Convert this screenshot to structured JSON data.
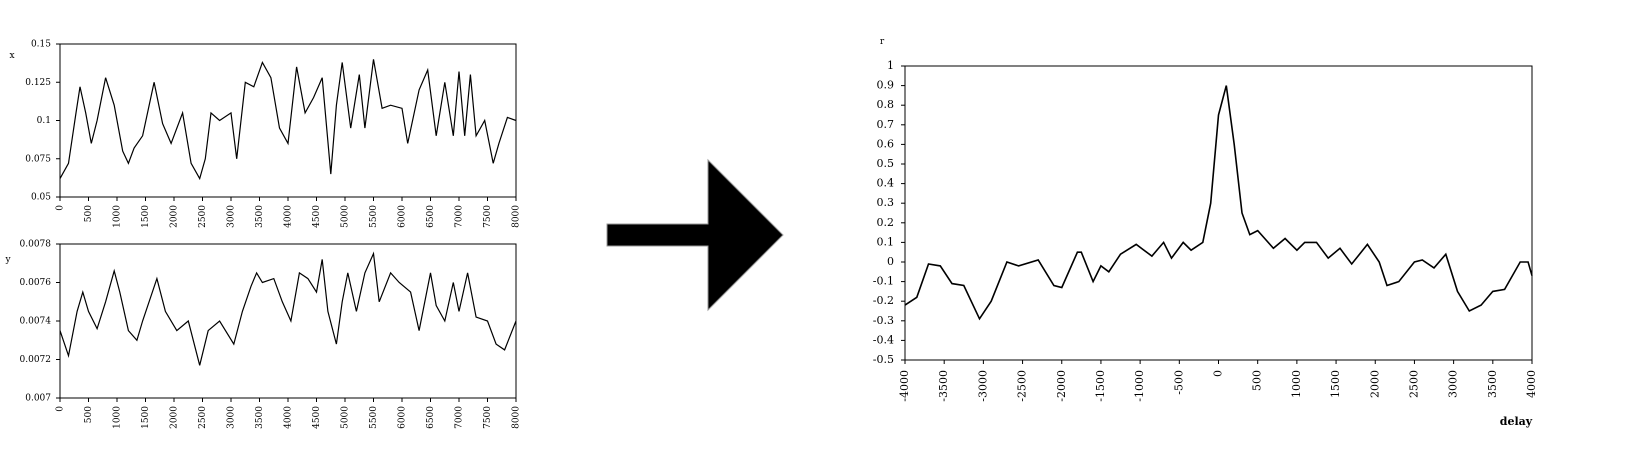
{
  "chart_data": [
    {
      "id": "x-series",
      "type": "line",
      "ylabel": "x",
      "xlabel": "",
      "xlim": [
        0,
        8000
      ],
      "ylim": [
        0.05,
        0.15
      ],
      "xticks": [
        0,
        500,
        1000,
        1500,
        2000,
        2500,
        3000,
        3500,
        4000,
        4500,
        5000,
        5500,
        6000,
        6500,
        7000,
        7500,
        8000
      ],
      "yticks": [
        0.05,
        0.075,
        0.1,
        0.125,
        0.15
      ],
      "ytick_labels": [
        "0.05",
        "0.075",
        "0.1",
        "0.125",
        "0.15"
      ],
      "series": [
        {
          "values": [
            [
              0,
              0.062
            ],
            [
              150,
              0.072
            ],
            [
              280,
              0.105
            ],
            [
              350,
              0.122
            ],
            [
              450,
              0.105
            ],
            [
              550,
              0.085
            ],
            [
              650,
              0.1
            ],
            [
              800,
              0.128
            ],
            [
              950,
              0.11
            ],
            [
              1100,
              0.08
            ],
            [
              1200,
              0.072
            ],
            [
              1300,
              0.082
            ],
            [
              1450,
              0.09
            ],
            [
              1650,
              0.125
            ],
            [
              1800,
              0.098
            ],
            [
              1950,
              0.085
            ],
            [
              2150,
              0.105
            ],
            [
              2300,
              0.072
            ],
            [
              2450,
              0.062
            ],
            [
              2550,
              0.075
            ],
            [
              2650,
              0.105
            ],
            [
              2800,
              0.1
            ],
            [
              3000,
              0.105
            ],
            [
              3100,
              0.075
            ],
            [
              3250,
              0.125
            ],
            [
              3400,
              0.122
            ],
            [
              3550,
              0.138
            ],
            [
              3700,
              0.128
            ],
            [
              3850,
              0.095
            ],
            [
              4000,
              0.085
            ],
            [
              4150,
              0.135
            ],
            [
              4300,
              0.105
            ],
            [
              4450,
              0.115
            ],
            [
              4600,
              0.128
            ],
            [
              4750,
              0.065
            ],
            [
              4850,
              0.11
            ],
            [
              4950,
              0.138
            ],
            [
              5100,
              0.095
            ],
            [
              5250,
              0.13
            ],
            [
              5350,
              0.095
            ],
            [
              5500,
              0.14
            ],
            [
              5650,
              0.108
            ],
            [
              5800,
              0.11
            ],
            [
              6000,
              0.108
            ],
            [
              6100,
              0.085
            ],
            [
              6300,
              0.12
            ],
            [
              6450,
              0.133
            ],
            [
              6600,
              0.09
            ],
            [
              6750,
              0.125
            ],
            [
              6900,
              0.09
            ],
            [
              7000,
              0.132
            ],
            [
              7100,
              0.09
            ],
            [
              7200,
              0.13
            ],
            [
              7300,
              0.09
            ],
            [
              7450,
              0.1
            ],
            [
              7600,
              0.072
            ],
            [
              7700,
              0.085
            ],
            [
              7850,
              0.102
            ],
            [
              8000,
              0.1
            ]
          ]
        }
      ]
    },
    {
      "id": "y-series",
      "type": "line",
      "ylabel": "y",
      "xlabel": "",
      "xlim": [
        0,
        8000
      ],
      "ylim": [
        0.007,
        0.0078
      ],
      "xticks": [
        0,
        500,
        1000,
        1500,
        2000,
        2500,
        3000,
        3500,
        4000,
        4500,
        5000,
        5500,
        6000,
        6500,
        7000,
        7500,
        8000
      ],
      "yticks": [
        0.007,
        0.0072,
        0.0074,
        0.0076,
        0.0078
      ],
      "ytick_labels": [
        "0.007",
        "0.0072",
        "0.0074",
        "0.0076",
        "0.0078"
      ],
      "series": [
        {
          "values": [
            [
              0,
              0.00735
            ],
            [
              150,
              0.00722
            ],
            [
              300,
              0.00745
            ],
            [
              400,
              0.00755
            ],
            [
              500,
              0.00745
            ],
            [
              650,
              0.00736
            ],
            [
              800,
              0.0075
            ],
            [
              950,
              0.00766
            ],
            [
              1050,
              0.00755
            ],
            [
              1200,
              0.00735
            ],
            [
              1350,
              0.0073
            ],
            [
              1450,
              0.0074
            ],
            [
              1700,
              0.00762
            ],
            [
              1850,
              0.00745
            ],
            [
              2050,
              0.00735
            ],
            [
              2250,
              0.0074
            ],
            [
              2450,
              0.00717
            ],
            [
              2600,
              0.00735
            ],
            [
              2800,
              0.0074
            ],
            [
              3050,
              0.00728
            ],
            [
              3200,
              0.00745
            ],
            [
              3350,
              0.00758
            ],
            [
              3450,
              0.00765
            ],
            [
              3550,
              0.0076
            ],
            [
              3750,
              0.00762
            ],
            [
              3900,
              0.0075
            ],
            [
              4050,
              0.0074
            ],
            [
              4200,
              0.00765
            ],
            [
              4350,
              0.00762
            ],
            [
              4500,
              0.00755
            ],
            [
              4600,
              0.00772
            ],
            [
              4700,
              0.00745
            ],
            [
              4850,
              0.00728
            ],
            [
              4950,
              0.0075
            ],
            [
              5050,
              0.00765
            ],
            [
              5200,
              0.00745
            ],
            [
              5350,
              0.00765
            ],
            [
              5500,
              0.00775
            ],
            [
              5600,
              0.0075
            ],
            [
              5800,
              0.00765
            ],
            [
              5950,
              0.0076
            ],
            [
              6150,
              0.00755
            ],
            [
              6300,
              0.00735
            ],
            [
              6500,
              0.00765
            ],
            [
              6600,
              0.00748
            ],
            [
              6750,
              0.0074
            ],
            [
              6900,
              0.0076
            ],
            [
              7000,
              0.00745
            ],
            [
              7150,
              0.00765
            ],
            [
              7300,
              0.00742
            ],
            [
              7500,
              0.0074
            ],
            [
              7650,
              0.00728
            ],
            [
              7800,
              0.00725
            ],
            [
              8000,
              0.0074
            ]
          ]
        }
      ]
    },
    {
      "id": "cross-correlation",
      "type": "line",
      "ylabel": "r",
      "xlabel": "delay",
      "xlim": [
        -4000,
        4000
      ],
      "ylim": [
        -0.5,
        1
      ],
      "xticks": [
        -4000,
        -3500,
        -3000,
        -2500,
        -2000,
        -1500,
        -1000,
        -500,
        0,
        500,
        1000,
        1500,
        2000,
        2500,
        3000,
        3500,
        4000
      ],
      "yticks": [
        -0.5,
        -0.4,
        -0.3,
        -0.2,
        -0.1,
        0,
        0.1,
        0.2,
        0.3,
        0.4,
        0.5,
        0.6,
        0.7,
        0.8,
        0.9,
        1
      ],
      "ytick_labels": [
        "-0.5",
        "-0.4",
        "-0.3",
        "-0.2",
        "-0.1",
        "0",
        "0.1",
        "0.2",
        "0.3",
        "0.4",
        "0.5",
        "0.6",
        "0.7",
        "0.8",
        "0.9",
        "1"
      ],
      "series": [
        {
          "values": [
            [
              -4000,
              -0.22
            ],
            [
              -3850,
              -0.18
            ],
            [
              -3700,
              -0.01
            ],
            [
              -3550,
              -0.02
            ],
            [
              -3400,
              -0.11
            ],
            [
              -3250,
              -0.12
            ],
            [
              -3050,
              -0.29
            ],
            [
              -2900,
              -0.2
            ],
            [
              -2700,
              0.0
            ],
            [
              -2550,
              -0.02
            ],
            [
              -2300,
              0.01
            ],
            [
              -2100,
              -0.12
            ],
            [
              -2000,
              -0.13
            ],
            [
              -1800,
              0.05
            ],
            [
              -1750,
              0.05
            ],
            [
              -1600,
              -0.1
            ],
            [
              -1500,
              -0.02
            ],
            [
              -1400,
              -0.05
            ],
            [
              -1250,
              0.04
            ],
            [
              -1050,
              0.09
            ],
            [
              -850,
              0.03
            ],
            [
              -700,
              0.1
            ],
            [
              -600,
              0.02
            ],
            [
              -450,
              0.1
            ],
            [
              -350,
              0.06
            ],
            [
              -200,
              0.1
            ],
            [
              -100,
              0.3
            ],
            [
              0,
              0.75
            ],
            [
              100,
              0.9
            ],
            [
              200,
              0.6
            ],
            [
              300,
              0.25
            ],
            [
              400,
              0.14
            ],
            [
              500,
              0.16
            ],
            [
              700,
              0.07
            ],
            [
              850,
              0.12
            ],
            [
              1000,
              0.06
            ],
            [
              1100,
              0.1
            ],
            [
              1250,
              0.1
            ],
            [
              1400,
              0.02
            ],
            [
              1550,
              0.07
            ],
            [
              1700,
              -0.01
            ],
            [
              1900,
              0.09
            ],
            [
              2050,
              0.0
            ],
            [
              2150,
              -0.12
            ],
            [
              2300,
              -0.1
            ],
            [
              2500,
              0.0
            ],
            [
              2600,
              0.01
            ],
            [
              2750,
              -0.03
            ],
            [
              2900,
              0.04
            ],
            [
              3050,
              -0.15
            ],
            [
              3200,
              -0.25
            ],
            [
              3350,
              -0.22
            ],
            [
              3500,
              -0.15
            ],
            [
              3650,
              -0.14
            ],
            [
              3850,
              0.0
            ],
            [
              3950,
              0.0
            ],
            [
              4000,
              -0.07
            ]
          ]
        }
      ]
    }
  ]
}
